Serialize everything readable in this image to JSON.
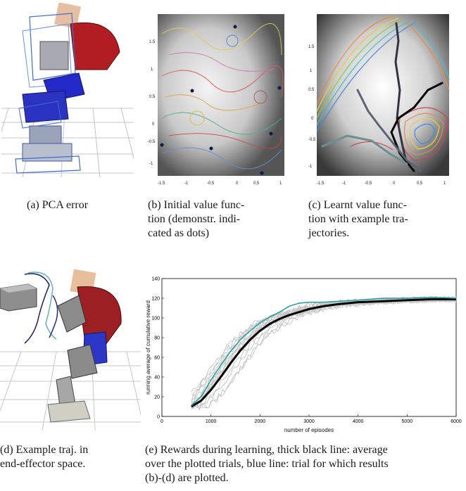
{
  "captions": {
    "a": "(a) PCA error",
    "b_lines": [
      "(b) Initial value func-",
      "tion (demonstr. indi-",
      "cated as dots)"
    ],
    "c_lines": [
      "(c) Learnt value func-",
      "tion with example tra-",
      "jectories."
    ],
    "d_lines": [
      "(d) Example traj. in",
      "end-effector space."
    ],
    "e_lines": [
      "(e) Rewards during learning, thick black line: average",
      "over the plotted trials, blue line: trial for which results",
      "(b)-(d) are plotted."
    ]
  },
  "panel_b": {
    "yticks": [
      "1.5",
      "1",
      "0.5",
      "0",
      "-0.5",
      "-1"
    ],
    "xticks": [
      "-1.5",
      "-1",
      "-0.5",
      "0",
      "0.5",
      "1"
    ]
  },
  "panel_c": {
    "yticks": [
      "1.5",
      "1",
      "0.5",
      "0",
      "-0.5",
      "-1"
    ],
    "xticks": [
      "-1.5",
      "-1",
      "-0.5",
      "0",
      "0.5",
      "1"
    ]
  },
  "chart_data": {
    "type": "line",
    "xlabel": "number of episodes",
    "ylabel": "running average of cumulative reward",
    "xlim": [
      0,
      6000
    ],
    "ylim": [
      0,
      140
    ],
    "xticks": [
      0,
      1000,
      2000,
      3000,
      4000,
      5000,
      6000
    ],
    "yticks": [
      0,
      20,
      40,
      60,
      80,
      100,
      120,
      140
    ],
    "grid": false,
    "series": [
      {
        "role": "average",
        "color": "#000000",
        "x": [
          600,
          800,
          1000,
          1200,
          1400,
          1600,
          1800,
          2000,
          2200,
          2400,
          2600,
          2800,
          3000,
          3300,
          3600,
          4000,
          4500,
          5000,
          5500,
          6000
        ],
        "y": [
          10,
          16,
          27,
          40,
          54,
          67,
          78,
          87,
          94,
          99,
          103,
          106,
          109,
          112,
          114,
          116,
          117,
          118,
          119,
          119
        ]
      },
      {
        "role": "selected trial",
        "color": "#1f9e9e",
        "x": [
          600,
          800,
          1000,
          1200,
          1400,
          1600,
          1800,
          2000,
          2200,
          2400,
          2600,
          2800,
          3000,
          3300,
          3600,
          4000,
          4500,
          5000,
          5500,
          6000
        ],
        "y": [
          11,
          20,
          37,
          52,
          66,
          78,
          87,
          95,
          101,
          106,
          112,
          115,
          116,
          116,
          117,
          118,
          120,
          120,
          121,
          120
        ]
      }
    ]
  }
}
